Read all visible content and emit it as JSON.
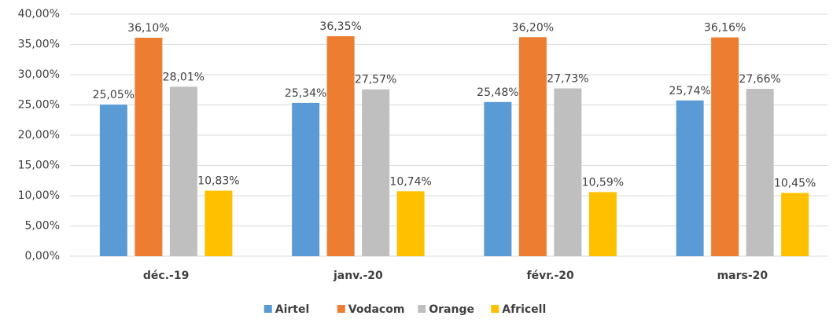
{
  "chart_data": {
    "type": "bar",
    "categories": [
      "déc.-19",
      "janv.-20",
      "févr.-20",
      "mars-20"
    ],
    "series": [
      {
        "name": "Airtel",
        "color": "#5b9bd5",
        "values": [
          25.05,
          25.34,
          25.48,
          25.74
        ],
        "value_labels": [
          "25,05%",
          "25,34%",
          "25,48%",
          "25,74%"
        ]
      },
      {
        "name": "Vodacom",
        "color": "#ed7d31",
        "values": [
          36.1,
          36.35,
          36.2,
          36.16
        ],
        "value_labels": [
          "36,10%",
          "36,35%",
          "36,20%",
          "36,16%"
        ]
      },
      {
        "name": "Orange",
        "color": "#bfbfbf",
        "values": [
          28.01,
          27.57,
          27.73,
          27.66
        ],
        "value_labels": [
          "28,01%",
          "27,57%",
          "27,73%",
          "27,66%"
        ]
      },
      {
        "name": "Africell",
        "color": "#ffc000",
        "values": [
          10.83,
          10.74,
          10.59,
          10.45
        ],
        "value_labels": [
          "10,83%",
          "10,74%",
          "10,59%",
          "10,45%"
        ]
      }
    ],
    "ylim": [
      0,
      40
    ],
    "yticks": [
      {
        "value": 0,
        "label": "0,00%"
      },
      {
        "value": 5,
        "label": "5,00%"
      },
      {
        "value": 10,
        "label": "10,00%"
      },
      {
        "value": 15,
        "label": "15,00%"
      },
      {
        "value": 20,
        "label": "20,00%"
      },
      {
        "value": 25,
        "label": "25,00%"
      },
      {
        "value": 30,
        "label": "30,00%"
      },
      {
        "value": 35,
        "label": "35,00%"
      },
      {
        "value": 40,
        "label": "40,00%"
      }
    ],
    "grid": true,
    "legend": "bottom"
  }
}
